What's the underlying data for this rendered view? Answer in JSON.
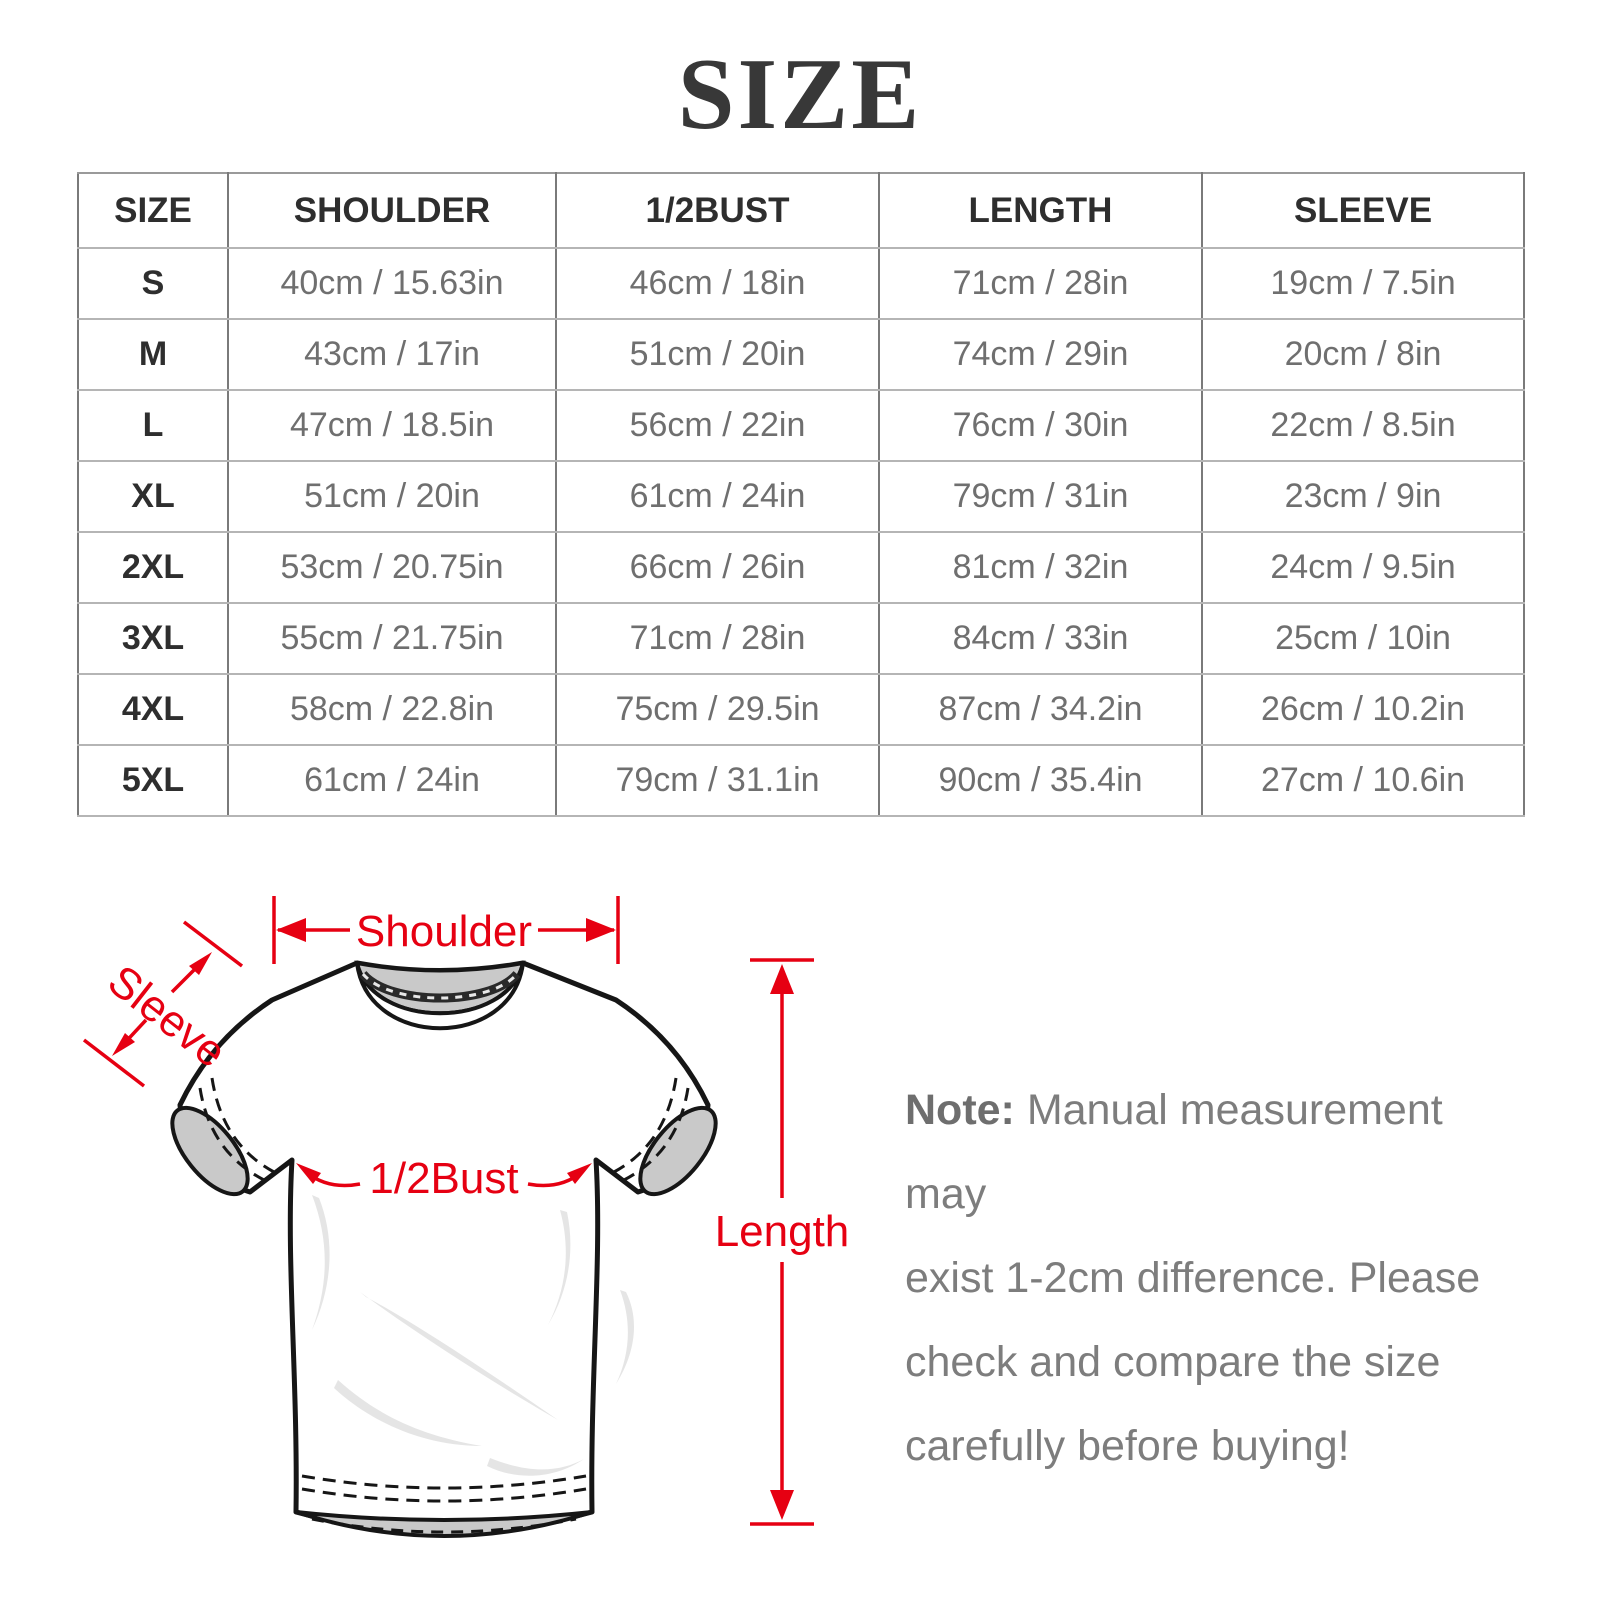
{
  "title": "SIZE",
  "table": {
    "headers": [
      "SIZE",
      "SHOULDER",
      "1/2BUST",
      "LENGTH",
      "SLEEVE"
    ],
    "rows": [
      {
        "size": "S",
        "cells": [
          "40cm / 15.63in",
          "46cm / 18in",
          "71cm / 28in",
          "19cm / 7.5in"
        ]
      },
      {
        "size": "M",
        "cells": [
          "43cm / 17in",
          "51cm / 20in",
          "74cm / 29in",
          "20cm / 8in"
        ]
      },
      {
        "size": "L",
        "cells": [
          "47cm / 18.5in",
          "56cm / 22in",
          "76cm / 30in",
          "22cm / 8.5in"
        ]
      },
      {
        "size": "XL",
        "cells": [
          "51cm / 20in",
          "61cm / 24in",
          "79cm / 31in",
          "23cm / 9in"
        ]
      },
      {
        "size": "2XL",
        "cells": [
          "53cm / 20.75in",
          "66cm / 26in",
          "81cm / 32in",
          "24cm / 9.5in"
        ]
      },
      {
        "size": "3XL",
        "cells": [
          "55cm / 21.75in",
          "71cm / 28in",
          "84cm / 33in",
          "25cm / 10in"
        ]
      },
      {
        "size": "4XL",
        "cells": [
          "58cm / 22.8in",
          "75cm / 29.5in",
          "87cm / 34.2in",
          "26cm / 10.2in"
        ]
      },
      {
        "size": "5XL",
        "cells": [
          "61cm / 24in",
          "79cm / 31.1in",
          "90cm / 35.4in",
          "27cm / 10.6in"
        ]
      }
    ]
  },
  "diagram": {
    "labels": {
      "shoulder": "Shoulder",
      "sleeve": "Sleeve",
      "half_bust": "1/2Bust",
      "length": "Length"
    },
    "annotation_color": "#e60012",
    "shirt_outline_color": "#161616",
    "shirt_shade_color": "#c9c9c9"
  },
  "note": {
    "label": "Note:",
    "lines": [
      "Manual measurement may",
      "exist 1-2cm difference. Please",
      "check and compare the size",
      "carefully before buying!"
    ]
  }
}
